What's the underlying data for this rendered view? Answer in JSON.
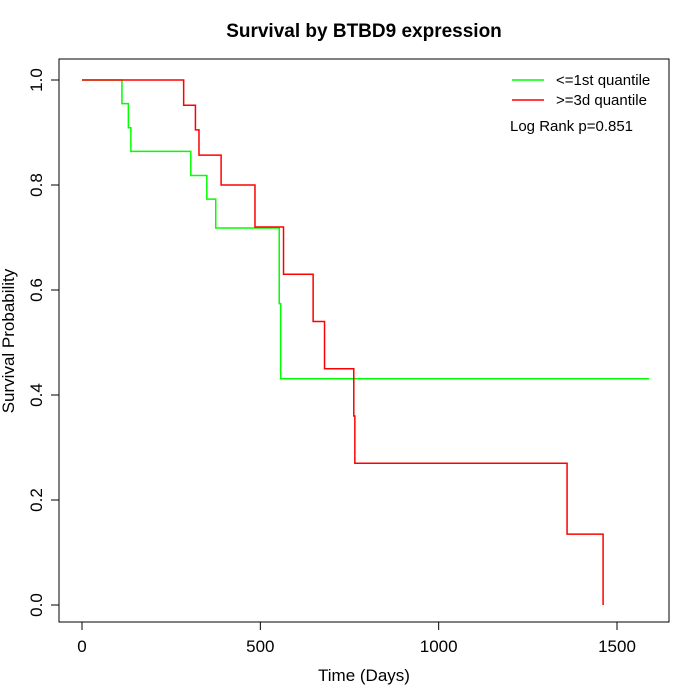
{
  "chart_data": {
    "type": "line",
    "title": "Survival by BTBD9 expression",
    "xlabel": "Time (Days)",
    "ylabel": "Survival Probability",
    "xlim": [
      0,
      1590
    ],
    "ylim": [
      0,
      1
    ],
    "x_ticks": [
      0,
      500,
      1000,
      1500
    ],
    "y_ticks": [
      0.0,
      0.2,
      0.4,
      0.6,
      0.8,
      1.0
    ],
    "x_tick_labels": [
      "0",
      "500",
      "1000",
      "1500"
    ],
    "y_tick_labels": [
      "0.0",
      "0.2",
      "0.4",
      "0.6",
      "0.8",
      "1.0"
    ],
    "grid": false,
    "legend_position": "top-right",
    "annotation": "Log Rank p=0.851",
    "series": [
      {
        "name": "<=1st quantile",
        "color": "#00ff00",
        "step": true,
        "x": [
          0,
          112,
          130,
          137,
          305,
          350,
          375,
          553,
          557,
          562,
          1590
        ],
        "y": [
          1.0,
          0.955,
          0.909,
          0.864,
          0.818,
          0.773,
          0.718,
          0.574,
          0.431,
          0.431,
          0.431
        ]
      },
      {
        "name": ">=3d quantile",
        "color": "#ff0000",
        "step": true,
        "x": [
          0,
          285,
          318,
          328,
          390,
          485,
          565,
          648,
          680,
          762,
          765,
          1360,
          1458,
          1461
        ],
        "y": [
          1.0,
          0.952,
          0.905,
          0.857,
          0.8,
          0.72,
          0.63,
          0.54,
          0.45,
          0.36,
          0.27,
          0.135,
          0.135,
          0.0
        ]
      }
    ]
  }
}
